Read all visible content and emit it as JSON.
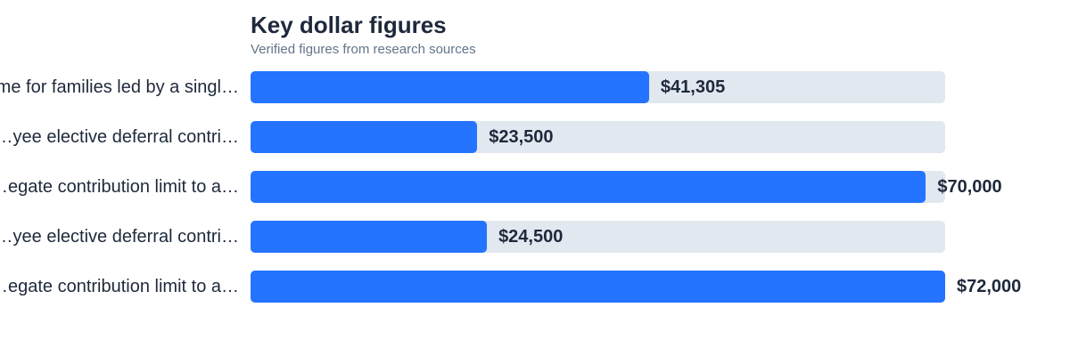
{
  "chart_data": {
    "type": "bar",
    "orientation": "horizontal",
    "title": "Key dollar figures",
    "subtitle": "Verified figures from research sources",
    "categories": [
      "…me for families led by a singl…",
      "…yee elective deferral contri…",
      "…egate contribution limit to a…",
      "…yee elective deferral contri…",
      "…egate contribution limit to a…"
    ],
    "values": [
      41305,
      23500,
      70000,
      24500,
      72000
    ],
    "value_labels": [
      "$41,305",
      "$23,500",
      "$70,000",
      "$24,500",
      "$72,000"
    ],
    "xlim": [
      0,
      72000
    ],
    "grid": false,
    "legend": "none",
    "colors": {
      "bar": "#2474ff",
      "track": "#e2e8f0",
      "text": "#1e293b",
      "subtitle": "#64748b"
    }
  }
}
